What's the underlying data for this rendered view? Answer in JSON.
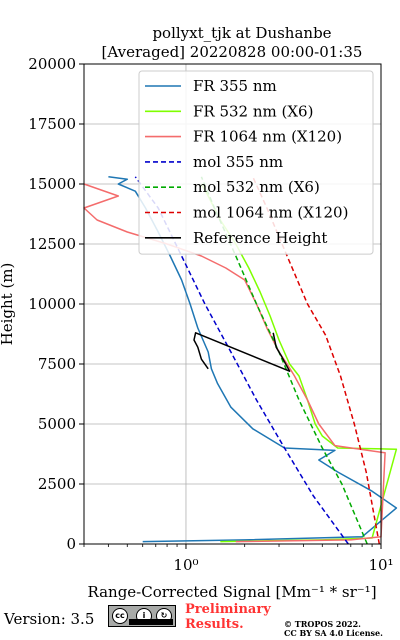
{
  "chart_data": {
    "type": "line",
    "title": [
      "pollyxt_tjk at Dushanbe",
      "[Averaged] 20220828 00:00-01:35"
    ],
    "xlabel": "Range-Corrected Signal [Mm⁻¹ * sr⁻¹]",
    "ylabel": "Height (m)",
    "xscale": "log",
    "xlim": [
      0.3,
      10
    ],
    "ylim": [
      0,
      20000
    ],
    "x_ticks": [
      1,
      10
    ],
    "x_tick_labels": [
      "10⁰",
      "10¹"
    ],
    "y_ticks": [
      0,
      2500,
      5000,
      7500,
      10000,
      12500,
      15000,
      17500,
      20000
    ],
    "y_tick_labels": [
      "0",
      "2500",
      "5000",
      "7500",
      "10000",
      "12500",
      "15000",
      "17500",
      "20000"
    ],
    "grid": true,
    "legend_position": "top-right",
    "series": [
      {
        "name": "FR 355 nm",
        "color": "#1f77b4",
        "style": "solid",
        "points": [
          [
            0.6,
            100
          ],
          [
            2,
            170
          ],
          [
            8,
            300
          ],
          [
            12,
            1500
          ],
          [
            9,
            2200
          ],
          [
            6,
            3000
          ],
          [
            4.8,
            3500
          ],
          [
            5.8,
            3900
          ],
          [
            3.2,
            4000
          ],
          [
            2.2,
            4800
          ],
          [
            1.7,
            5700
          ],
          [
            1.45,
            6700
          ],
          [
            1.35,
            7300
          ],
          [
            1.3,
            8000
          ],
          [
            1.15,
            9000
          ],
          [
            1.05,
            10000
          ],
          [
            0.95,
            11000
          ],
          [
            0.83,
            12000
          ],
          [
            0.72,
            13000
          ],
          [
            0.62,
            14000
          ],
          [
            0.55,
            14700
          ],
          [
            0.45,
            15000
          ],
          [
            0.5,
            15200
          ],
          [
            0.4,
            15300
          ]
        ]
      },
      {
        "name": "FR 532 nm (X6)",
        "color": "#7fff00",
        "style": "solid",
        "points": [
          [
            1.5,
            100
          ],
          [
            5,
            170
          ],
          [
            9,
            250
          ],
          [
            12,
            3950
          ],
          [
            6,
            4000
          ],
          [
            5,
            4500
          ],
          [
            4.6,
            5000
          ],
          [
            4.2,
            6000
          ],
          [
            3.8,
            7000
          ],
          [
            3.4,
            7500
          ],
          [
            3,
            8500
          ],
          [
            2.7,
            9500
          ],
          [
            2.4,
            10500
          ],
          [
            2.1,
            11500
          ],
          [
            1.8,
            12500
          ],
          [
            1.5,
            13500
          ],
          [
            1.3,
            14500
          ],
          [
            1.2,
            15000
          ]
        ]
      },
      {
        "name": "FR 1064 nm (X120)",
        "color": "#f46c6c",
        "style": "solid",
        "points": [
          [
            1.8,
            100
          ],
          [
            7,
            170
          ],
          [
            10,
            300
          ],
          [
            10.5,
            3800
          ],
          [
            5.8,
            4100
          ],
          [
            4.8,
            5000
          ],
          [
            4.2,
            6000
          ],
          [
            3.6,
            7000
          ],
          [
            3.3,
            7500
          ],
          [
            3,
            8000
          ],
          [
            2.6,
            9000
          ],
          [
            2.3,
            10000
          ],
          [
            2,
            11000
          ],
          [
            1.6,
            11500
          ],
          [
            1.2,
            12000
          ],
          [
            0.8,
            12500
          ],
          [
            0.5,
            13000
          ],
          [
            0.35,
            13500
          ],
          [
            0.3,
            14000
          ],
          [
            0.45,
            14500
          ],
          [
            0.3,
            15000
          ]
        ]
      },
      {
        "name": "mol 355 nm",
        "color": "#0000cc",
        "style": "dashed",
        "points": [
          [
            6.8,
            0
          ],
          [
            4.5,
            2000
          ],
          [
            3.2,
            4000
          ],
          [
            2.3,
            6000
          ],
          [
            1.7,
            8000
          ],
          [
            1.25,
            10000
          ],
          [
            0.95,
            12000
          ],
          [
            0.72,
            14000
          ],
          [
            0.55,
            15300
          ]
        ]
      },
      {
        "name": "mol 532 nm (X6)",
        "color": "#00aa00",
        "style": "dashed",
        "points": [
          [
            8.5,
            0
          ],
          [
            6.3,
            2500
          ],
          [
            5,
            4000
          ],
          [
            3.8,
            6000
          ],
          [
            3,
            8000
          ],
          [
            2.3,
            10000
          ],
          [
            1.8,
            12000
          ],
          [
            1.4,
            14000
          ],
          [
            1.2,
            15300
          ]
        ]
      },
      {
        "name": "mol 1064 nm (X120)",
        "color": "#dd0000",
        "style": "dashed",
        "points": [
          [
            9.8,
            0
          ],
          [
            8.4,
            3000
          ],
          [
            7.3,
            5000
          ],
          [
            6.2,
            7000
          ],
          [
            5.2,
            8700
          ],
          [
            4.2,
            10000
          ],
          [
            3.3,
            12000
          ],
          [
            2.6,
            14000
          ],
          [
            2.2,
            15300
          ]
        ]
      },
      {
        "name": "Reference Height",
        "color": "#000000",
        "style": "solid",
        "points": [
          [
            1.3,
            7300
          ],
          [
            1.2,
            7700
          ],
          [
            1.15,
            8200
          ],
          [
            1.1,
            8500
          ],
          [
            1.12,
            8800
          ],
          [
            3.4,
            7200
          ],
          [
            3.1,
            7800
          ],
          [
            2.9,
            8200
          ],
          [
            2.85,
            8500
          ],
          [
            2.8,
            8800
          ]
        ]
      }
    ]
  },
  "footer": {
    "version": "Version: 3.5",
    "preliminary_line1": "Preliminary",
    "preliminary_line2": "Results.",
    "license_line1": "© TROPOS 2022.",
    "license_line2": "CC BY SA 4.0 License.",
    "badge_icons": [
      "cc-icon",
      "by-icon",
      "sa-icon"
    ]
  }
}
